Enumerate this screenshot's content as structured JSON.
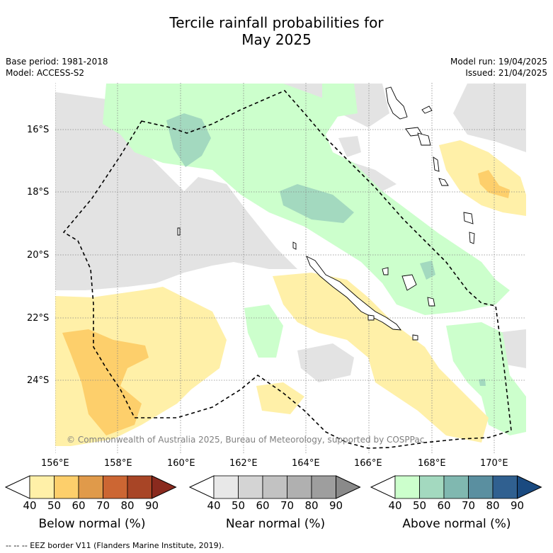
{
  "title_line1": "Tercile rainfall probabilities for",
  "title_line2": "May 2025",
  "base_period": "Base period: 1981-2018",
  "model": "Model: ACCESS-S2",
  "model_run": "Model run: 19/04/2025",
  "issued": "Issued: 21/04/2025",
  "lat_labels": [
    "16°S",
    "18°S",
    "20°S",
    "22°S",
    "24°S"
  ],
  "lon_labels": [
    "156°E",
    "158°E",
    "160°E",
    "162°E",
    "164°E",
    "166°E",
    "168°E",
    "170°E"
  ],
  "credit": "© Commonwealth of Australia 2025, Bureau of Meteorology, supported by COSPPac",
  "legend_eez": "-- -- -- EEZ border V11 (Flanders Marine Institute, 2019).",
  "colorbars": [
    {
      "title": "Below normal (%)",
      "ticks": [
        "40",
        "50",
        "60",
        "70",
        "80",
        "90"
      ],
      "colors": [
        "#fff0a8",
        "#fdcf6b",
        "#e09a4a",
        "#cc6633",
        "#a84526",
        "#8a2a1e"
      ]
    },
    {
      "title": "Near normal (%)",
      "ticks": [
        "40",
        "50",
        "60",
        "70",
        "80",
        "90"
      ],
      "colors": [
        "#e8e8e8",
        "#d4d4d4",
        "#c2c2c2",
        "#b0b0b0",
        "#9e9e9e",
        "#8a8a8a"
      ]
    },
    {
      "title": "Above normal (%)",
      "ticks": [
        "40",
        "50",
        "60",
        "70",
        "80",
        "90"
      ],
      "colors": [
        "#ccffcc",
        "#a3d9bf",
        "#80b8b0",
        "#5a8fa0",
        "#306090",
        "#1a4a80"
      ]
    }
  ]
}
